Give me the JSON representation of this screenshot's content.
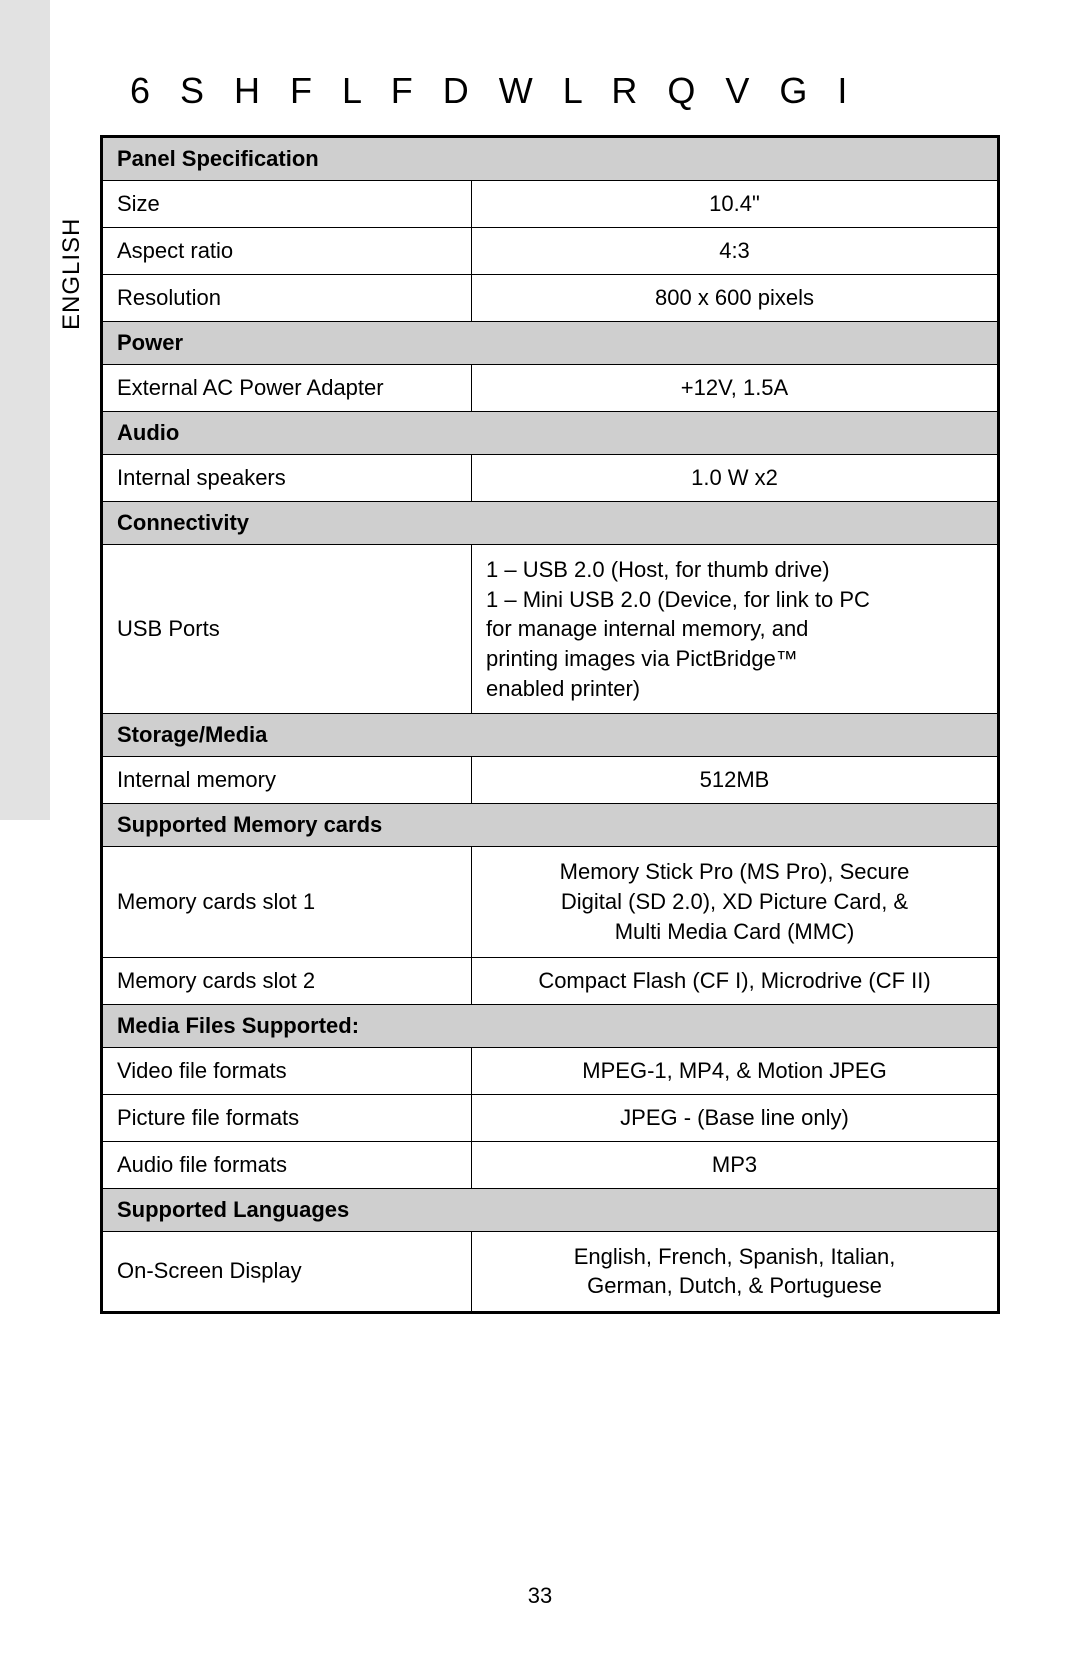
{
  "page": {
    "heading": "6 S H F L   F D W L R Q V     G I",
    "sidebar_label": "ENGLISH",
    "page_number": "33",
    "background_color": "#ffffff",
    "bar_color": "#e2e2e2",
    "header_bg": "#cfcfcf",
    "border_color": "#000000",
    "font_size_body": 22,
    "font_size_heading": 36
  },
  "table": {
    "sections": [
      {
        "title": "Panel Specification",
        "rows": [
          {
            "label": "Size",
            "value": "10.4\"",
            "align": "center"
          },
          {
            "label": "Aspect ratio",
            "value": "4:3",
            "align": "center"
          },
          {
            "label": "Resolution",
            "value": "800 x 600 pixels",
            "align": "center"
          }
        ]
      },
      {
        "title": "Power",
        "rows": [
          {
            "label": "External AC Power Adapter",
            "value": "+12V, 1.5A",
            "align": "center"
          }
        ]
      },
      {
        "title": "Audio",
        "rows": [
          {
            "label": "Internal speakers",
            "value": "1.0 W x2",
            "align": "center"
          }
        ]
      },
      {
        "title": "Connectivity",
        "rows": [
          {
            "label": "USB Ports",
            "value": "1 – USB 2.0 (Host, for thumb drive)\n1 – Mini USB 2.0 (Device, for link to PC\n     for manage internal memory, and\n     printing images via PictBridge™\n     enabled printer)",
            "align": "left"
          }
        ]
      },
      {
        "title": "Storage/Media",
        "rows": [
          {
            "label": "Internal memory",
            "value": "512MB",
            "align": "center"
          }
        ]
      },
      {
        "title": "Supported Memory cards",
        "rows": [
          {
            "label": "Memory cards slot 1",
            "value": "Memory Stick Pro (MS Pro), Secure\nDigital (SD 2.0), XD Picture Card, &\nMulti Media Card (MMC)",
            "align": "center"
          },
          {
            "label": "Memory cards slot 2",
            "value": "Compact Flash (CF I), Microdrive (CF II)",
            "align": "center"
          }
        ]
      },
      {
        "title": "Media Files Supported:",
        "rows": [
          {
            "label": "Video file formats",
            "value": "MPEG-1, MP4, & Motion JPEG",
            "align": "center"
          },
          {
            "label": "Picture file formats",
            "value": "JPEG -  (Base line only)",
            "align": "center"
          },
          {
            "label": "Audio file formats",
            "value": "MP3",
            "align": "center"
          }
        ]
      },
      {
        "title": "Supported Languages",
        "rows": [
          {
            "label": "On-Screen Display",
            "value": "English, French, Spanish, Italian,\nGerman, Dutch, & Portuguese",
            "align": "center"
          }
        ]
      }
    ]
  }
}
